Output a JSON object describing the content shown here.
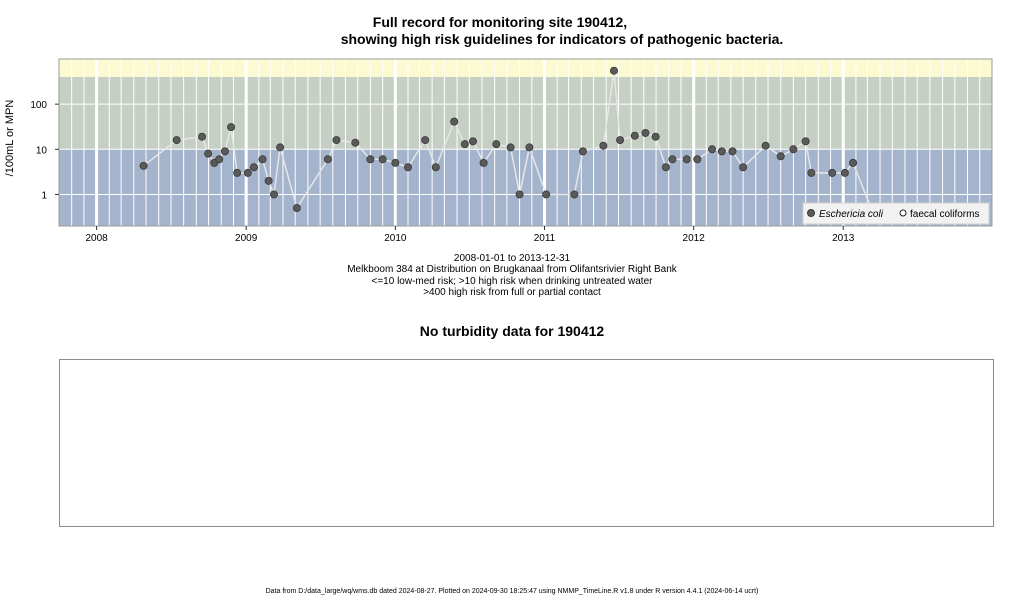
{
  "header": {
    "title_line1": "Full record for monitoring site 190412,",
    "title_line2": "showing high risk guidelines for indicators of pathogenic bacteria."
  },
  "chart_data": {
    "type": "scatter",
    "y_scale": "log",
    "ylabel": "/100mL or MPN",
    "y_ticks": [
      1,
      10,
      100
    ],
    "y_tick_labels": [
      "1",
      "10",
      "100"
    ],
    "ylim": [
      0.2,
      1000
    ],
    "xlim": [
      "2007-10-01",
      "2013-12-31"
    ],
    "x_ticks": [
      "2008",
      "2009",
      "2010",
      "2011",
      "2012",
      "2013"
    ],
    "risk_bands": [
      {
        "label": "<=10 low-med risk",
        "from": 0.2,
        "to": 10,
        "color": "#a4b4cc"
      },
      {
        "label": ">10 high risk when drinking untreated water",
        "from": 10,
        "to": 400,
        "color": "#c6cfc3"
      },
      {
        "label": ">400 high risk from full or partial contact",
        "from": 400,
        "to": 1000,
        "color": "#fcfad0"
      }
    ],
    "legend": {
      "placement": "bottom-right",
      "entries": [
        {
          "name": "Eschericia coli",
          "marker": "filled-circle",
          "italic": true
        },
        {
          "name": "faecal coliforms",
          "marker": "open-circle",
          "italic": false
        }
      ]
    },
    "series": [
      {
        "name": "Eschericia coli",
        "points": [
          {
            "x": "2008-04-25",
            "y": 4.3
          },
          {
            "x": "2008-07-15",
            "y": 16
          },
          {
            "x": "2008-09-15",
            "y": 19
          },
          {
            "x": "2008-09-30",
            "y": 8
          },
          {
            "x": "2008-10-15",
            "y": 5
          },
          {
            "x": "2008-10-27",
            "y": 6
          },
          {
            "x": "2008-11-10",
            "y": 9
          },
          {
            "x": "2008-11-25",
            "y": 31
          },
          {
            "x": "2008-12-10",
            "y": 3
          },
          {
            "x": "2009-01-05",
            "y": 3
          },
          {
            "x": "2009-01-20",
            "y": 4
          },
          {
            "x": "2009-02-10",
            "y": 6
          },
          {
            "x": "2009-02-25",
            "y": 2
          },
          {
            "x": "2009-03-10",
            "y": 1
          },
          {
            "x": "2009-03-25",
            "y": 11
          },
          {
            "x": "2009-05-05",
            "y": 0.5
          },
          {
            "x": "2009-07-20",
            "y": 6
          },
          {
            "x": "2009-08-10",
            "y": 16
          },
          {
            "x": "2009-09-25",
            "y": 14
          },
          {
            "x": "2009-11-01",
            "y": 6
          },
          {
            "x": "2009-12-01",
            "y": 6
          },
          {
            "x": "2010-01-01",
            "y": 5
          },
          {
            "x": "2010-02-01",
            "y": 4
          },
          {
            "x": "2010-03-15",
            "y": 16
          },
          {
            "x": "2010-04-10",
            "y": 4
          },
          {
            "x": "2010-05-25",
            "y": 41
          },
          {
            "x": "2010-06-20",
            "y": 13
          },
          {
            "x": "2010-07-10",
            "y": 15
          },
          {
            "x": "2010-08-05",
            "y": 5
          },
          {
            "x": "2010-09-05",
            "y": 13
          },
          {
            "x": "2010-10-10",
            "y": 11
          },
          {
            "x": "2010-11-01",
            "y": 1
          },
          {
            "x": "2010-11-25",
            "y": 11
          },
          {
            "x": "2011-01-05",
            "y": 1
          },
          {
            "x": "2011-03-15",
            "y": 1
          },
          {
            "x": "2011-04-05",
            "y": 9
          },
          {
            "x": "2011-05-25",
            "y": 12
          },
          {
            "x": "2011-06-20",
            "y": 550
          },
          {
            "x": "2011-07-05",
            "y": 16
          },
          {
            "x": "2011-08-10",
            "y": 20
          },
          {
            "x": "2011-09-05",
            "y": 23
          },
          {
            "x": "2011-09-30",
            "y": 19
          },
          {
            "x": "2011-10-25",
            "y": 4
          },
          {
            "x": "2011-11-10",
            "y": 6
          },
          {
            "x": "2011-12-15",
            "y": 6
          },
          {
            "x": "2012-01-10",
            "y": 6
          },
          {
            "x": "2012-02-15",
            "y": 10
          },
          {
            "x": "2012-03-10",
            "y": 9
          },
          {
            "x": "2012-04-05",
            "y": 9
          },
          {
            "x": "2012-05-01",
            "y": 4
          },
          {
            "x": "2012-06-25",
            "y": 12
          },
          {
            "x": "2012-08-01",
            "y": 7
          },
          {
            "x": "2012-09-01",
            "y": 10
          },
          {
            "x": "2012-10-01",
            "y": 15
          },
          {
            "x": "2012-10-15",
            "y": 3
          },
          {
            "x": "2012-12-05",
            "y": 3
          },
          {
            "x": "2013-01-05",
            "y": 3
          },
          {
            "x": "2013-01-25",
            "y": 5
          },
          {
            "x": "2013-03-10",
            "y": 0.5
          }
        ]
      }
    ]
  },
  "captions": {
    "date_range": "2008-01-01 to 2013-12-31",
    "site_description": "Melkboom 384 at Distribution on Brugkanaal from Olifantsrivier Right Bank",
    "risk_note_1": "<=10 low-med risk; >10 high risk when drinking untreated water",
    "risk_note_2": ">400 high risk from full or partial contact"
  },
  "turbidity": {
    "title": "No turbidity data for 190412"
  },
  "footer": {
    "text": "Data from D:/data_large/wq/wms.db dated 2024-08-27. Plotted on 2024-09-30 18:25:47 using NMMP_TimeLine.R v1.8 under R version 4.4.1 (2024-06-14 ucrt)"
  },
  "colors": {
    "low_med_band": "#a4b4cc",
    "high_band": "#c6cfc3",
    "contact_band": "#fcfad0",
    "point_fill": "#5a5a5a",
    "connector_line": "#e6e6e6"
  }
}
